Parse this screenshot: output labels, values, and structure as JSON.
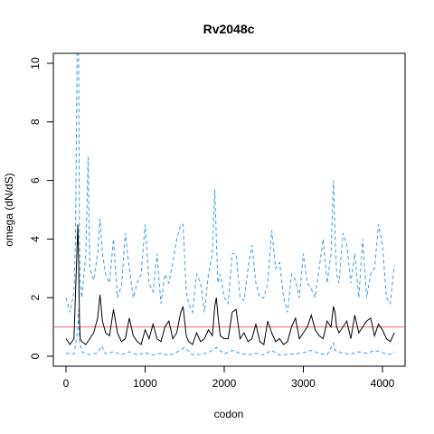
{
  "chart_data": {
    "type": "line",
    "title": "Rv2048c",
    "xlabel": "codon",
    "ylabel": "omega (dN/dS)",
    "xlim": [
      0,
      4200
    ],
    "ylim": [
      0,
      10.4
    ],
    "xticks": [
      0,
      1000,
      2000,
      3000,
      4000
    ],
    "yticks": [
      0,
      2,
      4,
      6,
      8,
      10
    ],
    "reference_line": {
      "y": 1,
      "color": "#e0707a"
    },
    "series": [
      {
        "style": "solid",
        "color": "#000000",
        "x": [
          0,
          50,
          100,
          150,
          160,
          170,
          180,
          200,
          250,
          300,
          350,
          400,
          430,
          460,
          500,
          550,
          600,
          650,
          700,
          750,
          800,
          850,
          900,
          950,
          1000,
          1050,
          1100,
          1150,
          1200,
          1250,
          1300,
          1350,
          1400,
          1450,
          1480,
          1520,
          1550,
          1600,
          1650,
          1700,
          1750,
          1800,
          1850,
          1880,
          1900,
          1920,
          1950,
          2000,
          2050,
          2100,
          2150,
          2200,
          2250,
          2300,
          2350,
          2400,
          2450,
          2500,
          2550,
          2600,
          2650,
          2700,
          2750,
          2800,
          2850,
          2900,
          2950,
          3000,
          3050,
          3100,
          3150,
          3200,
          3250,
          3300,
          3350,
          3380,
          3400,
          3420,
          3450,
          3500,
          3550,
          3600,
          3650,
          3700,
          3750,
          3800,
          3850,
          3900,
          3950,
          4000,
          4050,
          4100,
          4150
        ],
        "y": [
          0.6,
          0.4,
          0.6,
          4.5,
          3.2,
          1.2,
          0.6,
          0.5,
          0.4,
          0.6,
          0.8,
          1.3,
          2.1,
          1.2,
          0.8,
          0.7,
          1.6,
          0.8,
          0.5,
          0.6,
          1.3,
          0.7,
          0.5,
          0.4,
          0.9,
          0.6,
          1.1,
          0.6,
          0.5,
          1.0,
          1.2,
          0.6,
          0.8,
          1.5,
          1.7,
          0.7,
          0.5,
          0.4,
          0.8,
          0.5,
          0.6,
          0.9,
          0.7,
          1.7,
          2.0,
          1.4,
          0.7,
          0.6,
          0.6,
          1.5,
          1.6,
          0.6,
          0.8,
          0.5,
          0.6,
          1.1,
          0.5,
          0.4,
          1.2,
          0.8,
          0.5,
          0.6,
          0.4,
          0.5,
          1.0,
          1.3,
          0.6,
          0.8,
          1.0,
          1.4,
          0.9,
          0.7,
          0.6,
          1.2,
          1.0,
          1.7,
          1.5,
          1.0,
          0.8,
          1.0,
          1.2,
          0.6,
          1.4,
          0.8,
          1.0,
          1.2,
          1.3,
          0.7,
          1.1,
          0.9,
          0.6,
          0.5,
          0.8
        ]
      },
      {
        "style": "dashed",
        "color": "#3d9ee0",
        "x": [
          0,
          50,
          100,
          120,
          140,
          160,
          170,
          180,
          200,
          250,
          280,
          300,
          350,
          400,
          430,
          460,
          500,
          550,
          600,
          650,
          700,
          750,
          800,
          850,
          900,
          950,
          1000,
          1050,
          1100,
          1150,
          1200,
          1250,
          1300,
          1350,
          1400,
          1450,
          1480,
          1520,
          1550,
          1600,
          1650,
          1700,
          1750,
          1800,
          1850,
          1880,
          1900,
          1920,
          1950,
          2000,
          2050,
          2100,
          2150,
          2200,
          2250,
          2300,
          2350,
          2400,
          2450,
          2500,
          2550,
          2600,
          2650,
          2700,
          2750,
          2800,
          2850,
          2900,
          2950,
          3000,
          3050,
          3100,
          3150,
          3200,
          3250,
          3300,
          3350,
          3380,
          3400,
          3420,
          3450,
          3500,
          3550,
          3600,
          3650,
          3700,
          3750,
          3800,
          3850,
          3900,
          3950,
          4000,
          4050,
          4100,
          4150
        ],
        "y": [
          2.0,
          1.5,
          2.2,
          4.0,
          10.3,
          10.3,
          4.0,
          2.5,
          2.0,
          3.5,
          6.8,
          3.0,
          2.6,
          3.5,
          4.7,
          3.5,
          2.8,
          2.5,
          4.0,
          2.0,
          2.4,
          4.2,
          3.0,
          2.0,
          2.5,
          2.8,
          4.5,
          2.5,
          2.2,
          3.5,
          1.8,
          2.8,
          2.5,
          3.2,
          4.0,
          4.5,
          4.5,
          2.2,
          1.8,
          1.5,
          2.8,
          2.5,
          1.5,
          2.8,
          3.5,
          5.7,
          4.0,
          2.5,
          2.8,
          2.0,
          1.8,
          3.5,
          3.5,
          2.0,
          1.9,
          3.0,
          3.8,
          2.5,
          2.0,
          2.0,
          2.5,
          4.3,
          3.0,
          3.2,
          2.0,
          1.5,
          2.8,
          2.6,
          2.0,
          3.5,
          2.5,
          2.3,
          2.0,
          3.0,
          4.0,
          2.5,
          3.5,
          6.0,
          4.2,
          2.8,
          2.5,
          4.2,
          3.8,
          2.5,
          3.5,
          2.0,
          4.0,
          2.0,
          2.8,
          3.0,
          4.5,
          3.8,
          2.0,
          1.8,
          3.1
        ]
      },
      {
        "style": "dashed",
        "color": "#3d9ee0",
        "x": [
          0,
          100,
          150,
          160,
          170,
          200,
          300,
          400,
          450,
          500,
          600,
          700,
          800,
          900,
          1000,
          1100,
          1200,
          1300,
          1400,
          1500,
          1600,
          1700,
          1800,
          1900,
          2000,
          2100,
          2200,
          2300,
          2400,
          2500,
          2600,
          2700,
          2800,
          2900,
          3000,
          3100,
          3200,
          3300,
          3380,
          3400,
          3500,
          3600,
          3700,
          3800,
          3900,
          4000,
          4100,
          4150
        ],
        "y": [
          0.1,
          0.08,
          0.9,
          1.6,
          0.5,
          0.15,
          0.05,
          0.12,
          0.35,
          0.08,
          0.15,
          0.05,
          0.15,
          0.05,
          0.12,
          0.04,
          0.1,
          0.03,
          0.14,
          0.3,
          0.05,
          0.06,
          0.12,
          0.3,
          0.08,
          0.2,
          0.1,
          0.05,
          0.1,
          0.05,
          0.2,
          0.04,
          0.06,
          0.08,
          0.12,
          0.2,
          0.1,
          0.05,
          0.45,
          0.2,
          0.1,
          0.08,
          0.15,
          0.1,
          0.2,
          0.12,
          0.06,
          0.15
        ]
      }
    ]
  }
}
